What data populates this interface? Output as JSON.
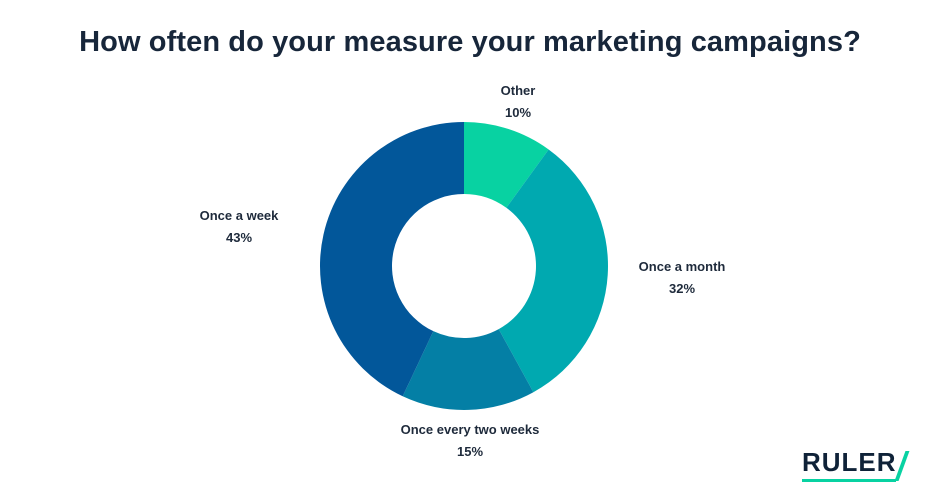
{
  "chart_data": {
    "type": "pie",
    "title": "How often do your measure your marketing campaigns?",
    "donut": true,
    "slices": [
      {
        "label": "Other",
        "value": 10,
        "value_label": "10%",
        "color": "#08d2a2"
      },
      {
        "label": "Once a month",
        "value": 32,
        "value_label": "32%",
        "color": "#00a9b0"
      },
      {
        "label": "Once every two weeks",
        "value": 15,
        "value_label": "15%",
        "color": "#047fa5"
      },
      {
        "label": "Once a week",
        "value": 43,
        "value_label": "43%",
        "color": "#02579a"
      }
    ]
  },
  "logo": {
    "text": "RULER",
    "accent_color": "#08d2a2"
  }
}
